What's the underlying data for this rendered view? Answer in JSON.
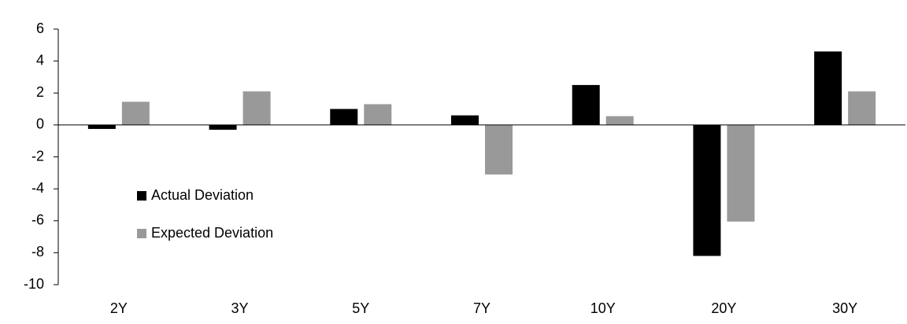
{
  "chart_data": {
    "type": "bar",
    "categories": [
      "2Y",
      "3Y",
      "5Y",
      "7Y",
      "10Y",
      "20Y",
      "30Y"
    ],
    "series": [
      {
        "name": "Actual Deviation",
        "color": "#000000",
        "values": [
          -0.25,
          -0.3,
          1.0,
          0.6,
          2.5,
          -8.2,
          4.6
        ]
      },
      {
        "name": "Expected Deviation",
        "color": "#999999",
        "values": [
          1.45,
          2.1,
          1.3,
          -3.1,
          0.55,
          -6.05,
          2.1
        ]
      }
    ],
    "ylim": [
      -10,
      6
    ],
    "yticks": [
      -10,
      -8,
      -6,
      -4,
      -2,
      0,
      2,
      4,
      6
    ],
    "grid": false,
    "legend": "lower left"
  }
}
